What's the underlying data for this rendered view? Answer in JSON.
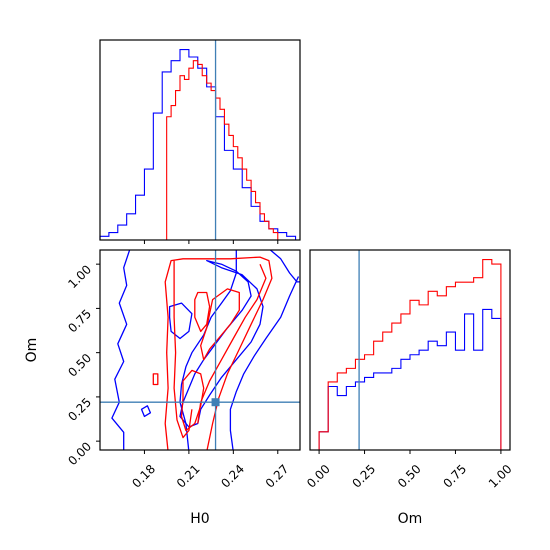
{
  "chart_data": [
    {
      "panel": "H0 marginal",
      "type": "histogram",
      "xlim": [
        0.15,
        0.285
      ],
      "truth": 0.228,
      "series": [
        {
          "color": "#0000ff",
          "bins": [
            0.15,
            0.156,
            0.162,
            0.168,
            0.174,
            0.18,
            0.186,
            0.192,
            0.198,
            0.204,
            0.21,
            0.216,
            0.222,
            0.228,
            0.234,
            0.24,
            0.246,
            0.252,
            0.258,
            0.264,
            0.27,
            0.276,
            0.282
          ],
          "counts": [
            1,
            2,
            4,
            7,
            12,
            19,
            34,
            45,
            48,
            51,
            49,
            46,
            41,
            33,
            24,
            19,
            14,
            9,
            5,
            3,
            2,
            1
          ]
        },
        {
          "color": "#ff0000",
          "bins": [
            0.195,
            0.198,
            0.201,
            0.204,
            0.207,
            0.21,
            0.213,
            0.216,
            0.219,
            0.222,
            0.225,
            0.228,
            0.231,
            0.234,
            0.237,
            0.24,
            0.243,
            0.246,
            0.249,
            0.252,
            0.255,
            0.258,
            0.261,
            0.264,
            0.267,
            0.27
          ],
          "counts": [
            33,
            36,
            40,
            44,
            43,
            46,
            48,
            47,
            44,
            42,
            40,
            38,
            35,
            31,
            28,
            25,
            22,
            19,
            16,
            13,
            10,
            7,
            5,
            3,
            2
          ]
        }
      ]
    },
    {
      "panel": "H0-Om joint",
      "type": "contour",
      "xlabel": "H0",
      "ylabel": "Om",
      "xlim": [
        0.15,
        0.285
      ],
      "ylim": [
        -0.05,
        1.08
      ],
      "xticks": [
        "0.18",
        "0.21",
        "0.24",
        "0.27"
      ],
      "yticks": [
        "0.00",
        "0.25",
        "0.50",
        "0.75",
        "1.00"
      ],
      "truth": {
        "x": 0.228,
        "y": 0.22
      }
    },
    {
      "panel": "Om marginal",
      "type": "histogram",
      "xlabel": "Om",
      "xlim": [
        -0.05,
        1.05
      ],
      "xticks": [
        "0.00",
        "0.25",
        "0.50",
        "0.75",
        "1.00"
      ],
      "truth": 0.22,
      "series": [
        {
          "color": "#0000ff",
          "bins": [
            0.0,
            0.05,
            0.1,
            0.15,
            0.2,
            0.25,
            0.3,
            0.35,
            0.4,
            0.45,
            0.5,
            0.55,
            0.6,
            0.65,
            0.7,
            0.75,
            0.8,
            0.85,
            0.9,
            0.95,
            1.0
          ],
          "counts": [
            4,
            14,
            12,
            14,
            15,
            16,
            17,
            17,
            18,
            20,
            21,
            22,
            24,
            23,
            26,
            22,
            30,
            22,
            31,
            29
          ]
        },
        {
          "color": "#ff0000",
          "bins": [
            0.0,
            0.05,
            0.1,
            0.15,
            0.2,
            0.25,
            0.3,
            0.35,
            0.4,
            0.45,
            0.5,
            0.55,
            0.6,
            0.65,
            0.7,
            0.75,
            0.8,
            0.85,
            0.9,
            0.95,
            1.0
          ],
          "counts": [
            4,
            15,
            17,
            18,
            20,
            21,
            24,
            26,
            28,
            30,
            33,
            32,
            35,
            34,
            36,
            37,
            37,
            38,
            42,
            41
          ]
        }
      ]
    }
  ]
}
